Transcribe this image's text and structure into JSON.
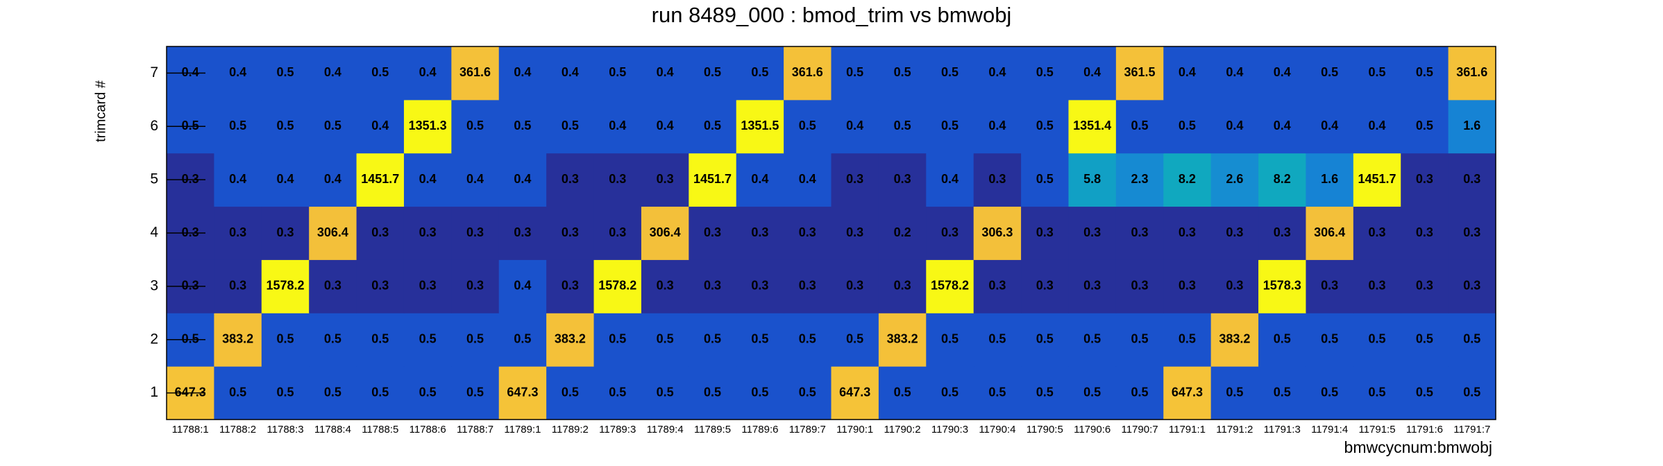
{
  "chart_data": {
    "type": "heatmap",
    "title": "run 8489_000 : bmod_trim vs bmwobj",
    "x_label": "bmwcycnum:bmwobj",
    "y_label": "trimcard #",
    "categories": [
      "11788:1",
      "11788:2",
      "11788:3",
      "11788:4",
      "11788:5",
      "11788:6",
      "11788:7",
      "11789:1",
      "11789:2",
      "11789:3",
      "11789:4",
      "11789:5",
      "11789:6",
      "11789:7",
      "11790:1",
      "11790:2",
      "11790:3",
      "11790:4",
      "11790:5",
      "11790:6",
      "11790:7",
      "11791:1",
      "11791:2",
      "11791:3",
      "11791:4",
      "11791:5",
      "11791:6",
      "11791:7"
    ],
    "ylim": [
      0.5,
      7.5
    ],
    "yticks": [
      1,
      2,
      3,
      4,
      5,
      6,
      7
    ],
    "z": [
      [
        647.3,
        0.5,
        0.5,
        0.5,
        0.5,
        0.5,
        0.5,
        647.3,
        0.5,
        0.5,
        0.5,
        0.5,
        0.5,
        0.5,
        647.3,
        0.5,
        0.5,
        0.5,
        0.5,
        0.5,
        0.5,
        647.3,
        0.5,
        0.5,
        0.5,
        0.5,
        0.5,
        0.5
      ],
      [
        0.5,
        383.2,
        0.5,
        0.5,
        0.5,
        0.5,
        0.5,
        0.5,
        383.2,
        0.5,
        0.5,
        0.5,
        0.5,
        0.5,
        0.5,
        383.2,
        0.5,
        0.5,
        0.5,
        0.5,
        0.5,
        0.5,
        383.2,
        0.5,
        0.5,
        0.5,
        0.5,
        0.5
      ],
      [
        0.3,
        0.3,
        1578.2,
        0.3,
        0.3,
        0.3,
        0.3,
        0.4,
        0.3,
        1578.2,
        0.3,
        0.3,
        0.3,
        0.3,
        0.3,
        0.3,
        1578.2,
        0.3,
        0.3,
        0.3,
        0.3,
        0.3,
        0.3,
        1578.3,
        0.3,
        0.3,
        0.3,
        0.3
      ],
      [
        0.3,
        0.3,
        0.3,
        306.4,
        0.3,
        0.3,
        0.3,
        0.3,
        0.3,
        0.3,
        306.4,
        0.3,
        0.3,
        0.3,
        0.3,
        0.2,
        0.3,
        306.3,
        0.3,
        0.3,
        0.3,
        0.3,
        0.3,
        0.3,
        306.4,
        0.3,
        0.3,
        0.3
      ],
      [
        0.3,
        0.4,
        0.4,
        0.4,
        1451.7,
        0.4,
        0.4,
        0.4,
        0.3,
        0.3,
        0.3,
        1451.7,
        0.4,
        0.4,
        0.3,
        0.3,
        0.4,
        0.3,
        0.5,
        5.8,
        2.3,
        8.2,
        2.6,
        8.2,
        1.6,
        1451.7,
        0.3,
        0.3
      ],
      [
        0.5,
        0.5,
        0.5,
        0.5,
        0.4,
        1351.3,
        0.5,
        0.5,
        0.5,
        0.4,
        0.4,
        0.5,
        1351.5,
        0.5,
        0.4,
        0.5,
        0.5,
        0.4,
        0.5,
        1351.4,
        0.5,
        0.5,
        0.4,
        0.4,
        0.4,
        0.4,
        0.5,
        1.6
      ],
      [
        0.4,
        0.4,
        0.5,
        0.4,
        0.5,
        0.4,
        361.6,
        0.4,
        0.4,
        0.5,
        0.4,
        0.5,
        0.5,
        361.6,
        0.5,
        0.5,
        0.5,
        0.4,
        0.5,
        0.4,
        361.5,
        0.4,
        0.4,
        0.4,
        0.5,
        0.5,
        0.5,
        361.6
      ]
    ],
    "zlog": true,
    "palette": [
      "#27309a",
      "#27309a",
      "#1a52cc",
      "#1a52cc",
      "#1683d4",
      "#168fd0",
      "#0fa8c0",
      "#3bbf90",
      "#f3c03a",
      "#f5c338",
      "#f8f815",
      "#f8f815"
    ]
  }
}
